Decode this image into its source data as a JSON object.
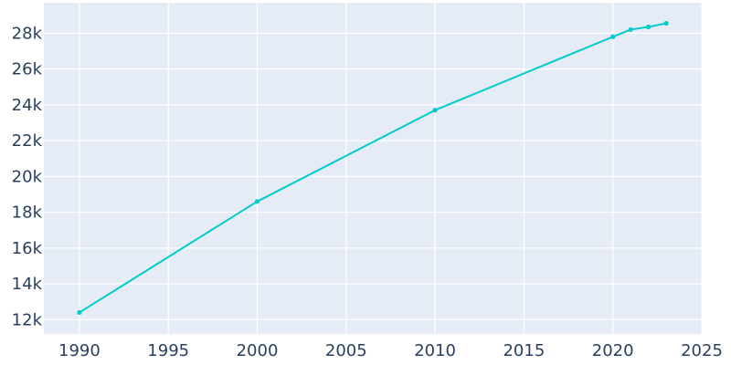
{
  "chart_data": {
    "type": "line",
    "title": "",
    "xlabel": "",
    "ylabel": "",
    "xlim": [
      1988,
      2025
    ],
    "ylim": [
      11200,
      29700
    ],
    "grid": true,
    "legend": "none",
    "x_ticks": [
      1990,
      1995,
      2000,
      2005,
      2010,
      2015,
      2020,
      2025
    ],
    "x_tick_labels": [
      "1990",
      "1995",
      "2000",
      "2005",
      "2010",
      "2015",
      "2020",
      "2025"
    ],
    "y_ticks": [
      12000,
      14000,
      16000,
      18000,
      20000,
      22000,
      24000,
      26000,
      28000
    ],
    "y_tick_labels": [
      "12k",
      "14k",
      "16k",
      "18k",
      "20k",
      "22k",
      "24k",
      "26k",
      "28k"
    ],
    "series": [
      {
        "x": [
          1990,
          2000,
          2010,
          2020,
          2021,
          2022,
          2023
        ],
        "y": [
          12400,
          18600,
          23700,
          27800,
          28200,
          28350,
          28550
        ]
      }
    ],
    "colors": {
      "line": "#00cccc",
      "plot_bg": "#e5ecf6",
      "grid": "#ffffff",
      "text": "#2a3f5f"
    }
  }
}
